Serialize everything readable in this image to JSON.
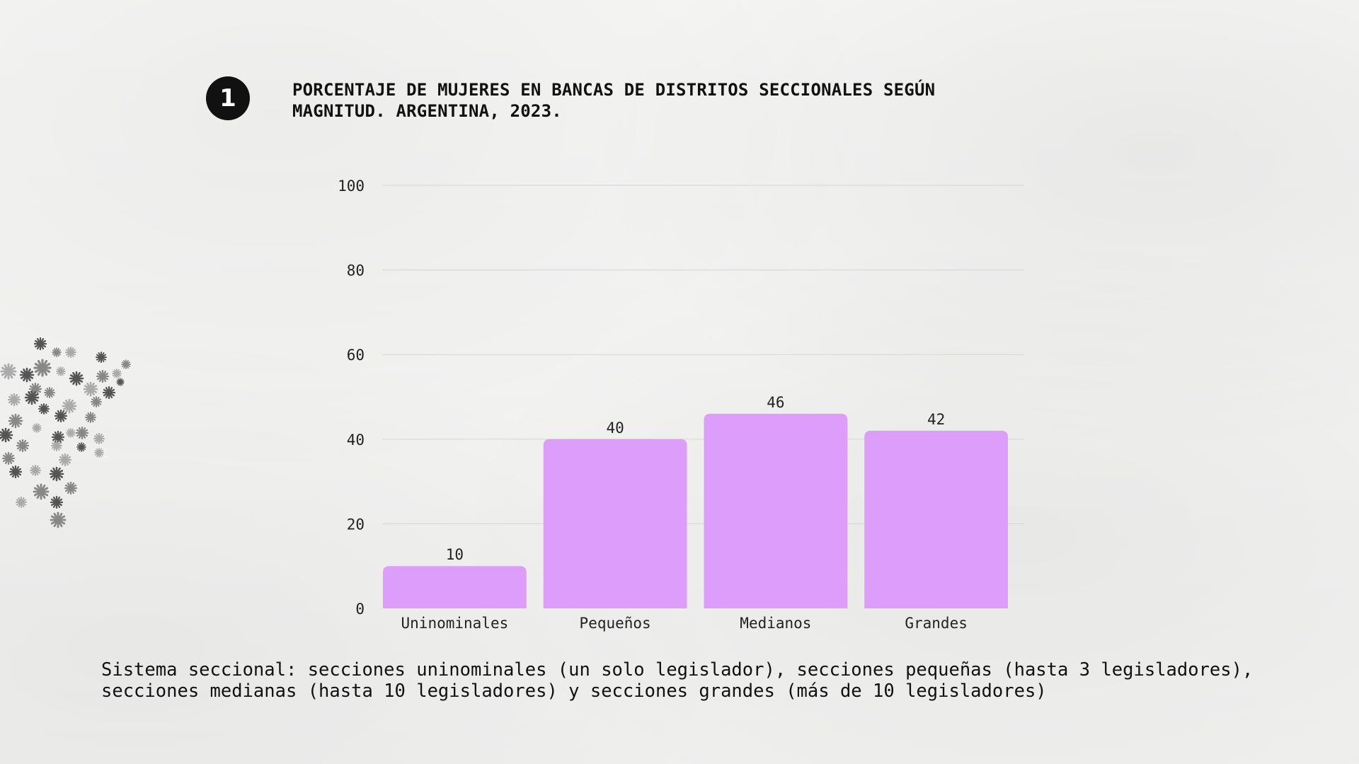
{
  "badge": {
    "number": "1"
  },
  "title": {
    "line1": "PORCENTAJE DE MUJERES EN BANCAS DE DISTRITOS SECCIONALES SEGÚN",
    "line2": "MAGNITUD. ARGENTINA, 2023."
  },
  "caption": {
    "line1": "Sistema seccional: secciones uninominales (un solo legislador), secciones pequeñas (hasta 3 legisladores),",
    "line2": "secciones medianas (hasta 10 legisladores) y secciones grandes (más de 10 legisladores)"
  },
  "colors": {
    "bar": "#dd9dfb",
    "grid": "#d9d9d9",
    "badge": "#111111"
  },
  "decoration": {
    "icon": "asterisk-flower-cluster-icon"
  },
  "chart_data": {
    "type": "bar",
    "title": "PORCENTAJE DE MUJERES EN BANCAS DE DISTRITOS SECCIONALES SEGÚN MAGNITUD. ARGENTINA, 2023.",
    "categories": [
      "Uninominales",
      "Pequeños",
      "Medianos",
      "Grandes"
    ],
    "values": [
      10,
      40,
      46,
      42
    ],
    "data_labels": [
      "10",
      "40",
      "46",
      "42"
    ],
    "y_ticks": [
      0,
      20,
      40,
      60,
      80,
      100
    ],
    "ylim": [
      0,
      100
    ],
    "xlabel": "",
    "ylabel": "",
    "grid": true,
    "legend": "none"
  }
}
